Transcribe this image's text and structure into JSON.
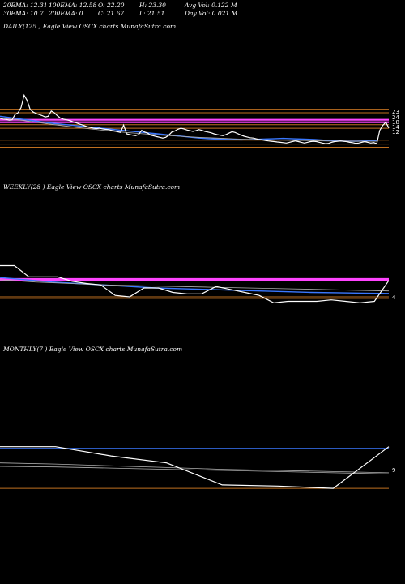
{
  "header": {
    "row1": [
      "20EMA: 12.31",
      "100EMA: 12.58",
      "O: 22.20",
      "H: 23.30",
      "Avg Vol: 0.122  M"
    ],
    "row2": [
      "30EMA: 10.7",
      "200EMA: 0",
      "C: 21.67",
      "L: 21.51",
      "Day Vol: 0.021  M"
    ]
  },
  "colors": {
    "background": "#000000",
    "price": "#ffffff",
    "ema": "#3a78ff",
    "band": "#ff44ff",
    "support": "#c07020",
    "gray": "#b0b0b0"
  },
  "chart_data": [
    {
      "type": "line",
      "title": "DAILY(125          ) Eagle   View  OSCX  charts MunafaSutra.com",
      "tick_labels": [
        "23",
        "24",
        "18",
        "14",
        "12"
      ],
      "ylim": [
        5,
        35
      ],
      "series": [
        {
          "role": "price",
          "values": [
            24.4,
            24.2,
            24.1,
            23.9,
            24.0,
            25.5,
            26.0,
            27.5,
            31.0,
            29.5,
            27.0,
            26.2,
            25.8,
            25.5,
            25.2,
            24.8,
            25.0,
            26.5,
            26.0,
            25.2,
            24.5,
            24.2,
            24.0,
            23.8,
            23.5,
            23.2,
            22.9,
            22.6,
            22.3,
            22.0,
            21.8,
            21.6,
            21.5,
            21.6,
            21.4,
            21.3,
            21.2,
            21.0,
            20.8,
            20.6,
            20.4,
            22.5,
            20.0,
            19.8,
            19.6,
            19.5,
            19.8,
            21.0,
            20.5,
            20.2,
            19.6,
            19.4,
            19.2,
            19.0,
            18.8,
            19.0,
            19.6,
            20.5,
            20.8,
            21.3,
            21.6,
            21.4,
            21.1,
            20.9,
            20.7,
            20.9,
            21.2,
            21.0,
            20.7,
            20.5,
            20.3,
            20.0,
            19.8,
            19.6,
            19.5,
            19.8,
            20.2,
            20.6,
            20.4,
            20.0,
            19.6,
            19.3,
            19.1,
            18.9,
            18.8,
            18.6,
            18.4,
            18.3,
            18.1,
            18.0,
            17.9,
            17.8,
            17.7,
            17.6,
            17.5,
            17.4,
            17.6,
            17.8,
            18.0,
            17.8,
            17.6,
            17.4,
            17.6,
            17.8,
            17.9,
            17.8,
            17.6,
            17.4,
            17.2,
            17.3,
            17.6,
            17.8,
            17.9,
            18.0,
            17.9,
            17.8,
            17.6,
            17.5,
            17.3,
            17.4,
            17.6,
            17.8,
            17.6,
            17.4,
            17.5,
            17.2,
            21.0,
            22.4,
            23.3,
            21.67
          ]
        },
        {
          "role": "ema",
          "values": [
            25.0,
            24.6,
            24.2,
            23.8,
            23.4,
            23.0,
            22.7,
            22.4,
            22.1,
            21.8,
            21.5,
            21.2,
            20.9,
            20.6,
            20.3,
            20.0,
            19.7,
            19.4,
            19.1,
            18.8,
            18.6,
            18.5,
            18.4,
            18.3,
            18.4,
            18.5,
            18.6,
            18.7,
            18.6,
            18.5,
            18.4,
            18.2,
            18.0,
            17.9,
            17.9,
            18.0,
            18.1
          ]
        },
        {
          "role": "ema-gray",
          "values": [
            24.6,
            24.0,
            23.3,
            22.6,
            22.0,
            21.4,
            20.9,
            20.4,
            20.0,
            19.6,
            19.3,
            19.0,
            18.8,
            18.6,
            18.4,
            18.3,
            18.2,
            18.1,
            18.0,
            17.9,
            17.9,
            17.9
          ]
        }
      ],
      "levels": [
        {
          "role": "band",
          "value": 23.3
        },
        {
          "role": "band",
          "value": 24.0
        },
        {
          "role": "support",
          "value": 27.0
        },
        {
          "role": "support",
          "value": 26.0
        },
        {
          "role": "support",
          "value": 22.6
        },
        {
          "role": "support",
          "value": 21.6
        },
        {
          "role": "support",
          "value": 18.2
        },
        {
          "role": "support",
          "value": 17.1
        },
        {
          "role": "support",
          "value": 16.2
        }
      ]
    },
    {
      "type": "line",
      "title": "WEEKLY(28          ) Eagle   View  OSCX  charts MunafaSutra.com",
      "tick_labels": [
        "4"
      ],
      "ylim": [
        0,
        60
      ],
      "series": [
        {
          "role": "price",
          "values": [
            45.0,
            45.0,
            37.5,
            37.5,
            37.5,
            34.5,
            33.0,
            32.0,
            25.0,
            24.0,
            30.0,
            30.0,
            27.0,
            26.0,
            26.0,
            31.0,
            29.0,
            27.0,
            25.0,
            20.0,
            21.0,
            21.0,
            21.0,
            22.0,
            21.0,
            20.0,
            21.0,
            35.0
          ]
        },
        {
          "role": "ema",
          "values": [
            37.0,
            35.5,
            34.0,
            33.0,
            32.0,
            31.0,
            30.0,
            29.5,
            29.0,
            28.5,
            28.0,
            27.5,
            27.0,
            26.8,
            26.5,
            26.3
          ]
        },
        {
          "role": "ema-gray",
          "values": [
            35.5,
            34.0,
            33.0,
            32.0,
            31.5,
            31.0,
            30.5,
            30.0,
            29.5,
            29.0,
            28.5,
            28.0
          ]
        }
      ],
      "levels": [
        {
          "role": "band",
          "value": 36.0
        },
        {
          "role": "band",
          "value": 35.0
        },
        {
          "role": "support",
          "value": 24.0
        },
        {
          "role": "support",
          "value": 23.0
        }
      ]
    },
    {
      "type": "line",
      "title": "MONTHLY(7          ) Eagle   View  OSCX  charts MunafaSutra.com",
      "tick_labels": [
        "9"
      ],
      "ylim": [
        0,
        70
      ],
      "series": [
        {
          "role": "price",
          "values": [
            45.0,
            45.0,
            37.0,
            31.0,
            12.0,
            11.0,
            9.0,
            45.0
          ]
        },
        {
          "role": "ema",
          "values": [
            43.5,
            43.5,
            43.5,
            43.5,
            43.5,
            43.5,
            43.5,
            43.5
          ]
        },
        {
          "role": "ema-gray",
          "values": [
            31.0,
            30.0,
            28.5,
            27.0,
            25.5,
            24.5,
            23.5,
            22.5
          ]
        },
        {
          "role": "ema-gray",
          "values": [
            28.0,
            27.5,
            26.5,
            25.5,
            24.5,
            23.5,
            22.5,
            21.5
          ]
        }
      ],
      "levels": [
        {
          "role": "support",
          "value": 9.0
        }
      ]
    }
  ]
}
